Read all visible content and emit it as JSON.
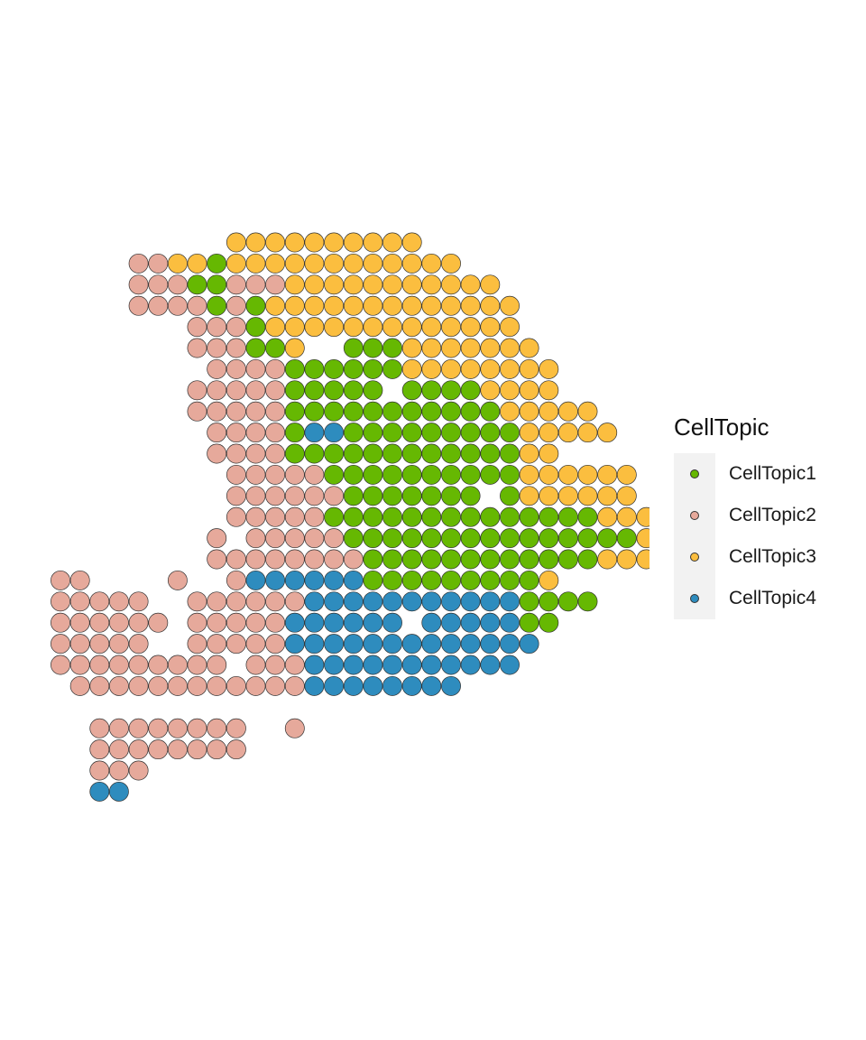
{
  "chart_data": {
    "type": "scatter",
    "grid": false,
    "legend_position": "right",
    "legend": {
      "title": "CellTopic",
      "entries": [
        {
          "name": "CellTopic1",
          "color": "#66b802"
        },
        {
          "name": "CellTopic2",
          "color": "#e6a99b"
        },
        {
          "name": "CellTopic3",
          "color": "#fbbe3f"
        },
        {
          "name": "CellTopic4",
          "color": "#2e8cbe"
        }
      ]
    },
    "row_codes": {
      "legend": "row:[start_col, string] — col 0 = leftmost spot column; each char one spot: 1=CellTopic1, 2=CellTopic2, 3=CellTopic3, 4=CellTopic4, .=no spot",
      "rows": [
        [
          9,
          "3333333333"
        ],
        [
          4,
          "22331333333333333"
        ],
        [
          4,
          "2221122233333333333"
        ],
        [
          4,
          "22221213333333333333"
        ],
        [
          7,
          "22213333333333333"
        ],
        [
          7,
          "222113..1113333333"
        ],
        [
          8,
          "222211111133333333"
        ],
        [
          7,
          "2222211111.11113333"
        ],
        [
          7,
          "222221111111111133333"
        ],
        [
          8,
          "222214411111111133333"
        ],
        [
          8,
          "222211111111111133"
        ],
        [
          9,
          "222221111111111333333"
        ],
        [
          9,
          "2222221111111.1333333"
        ],
        [
          9,
          "22222111111111111113333"
        ],
        [
          8,
          "2.2222211111111111111133"
        ],
        [
          8,
          "222222221111111111113333"
        ],
        [
          0,
          "22....2..24444441111111113"
        ],
        [
          0,
          "22222..222222444444444441111"
        ],
        [
          0,
          "222222.22222444444.4444411"
        ],
        [
          0,
          "22222..222224444444444444"
        ],
        [
          0,
          "222222222.22244444444444"
        ],
        [
          1,
          "22222222222244444444"
        ],
        [
          0,
          ""
        ],
        [
          2,
          "22222222..2"
        ],
        [
          2,
          "22222222"
        ],
        [
          2,
          "222"
        ],
        [
          2,
          "44"
        ]
      ]
    }
  }
}
